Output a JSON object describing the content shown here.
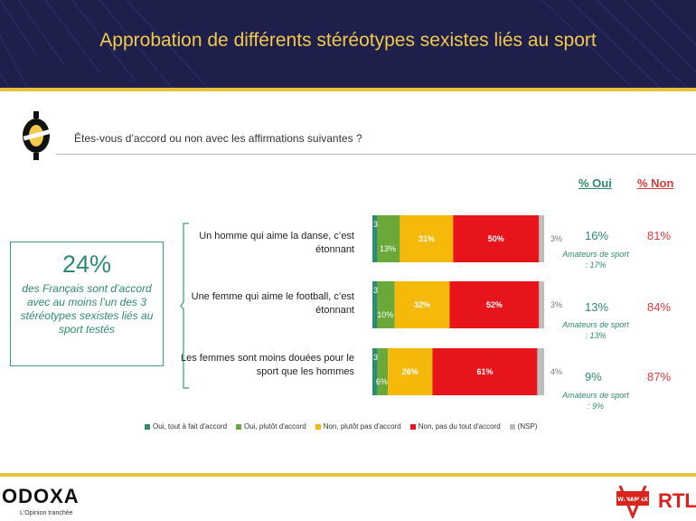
{
  "title": "Approbation de différents stéréotypes sexistes liés au sport",
  "question": "Êtes-vous d’accord ou non avec les affirmations suivantes ?",
  "columns": {
    "oui": "% Oui",
    "non": "% Non"
  },
  "callout": {
    "value": "24%",
    "text": "des Français sont d’accord avec au moins l’un des 3 stéréotypes sexistes liés au sport testés"
  },
  "rows": [
    {
      "statement": "Un homme qui aime la danse, c’est étonnant",
      "oui": "16%",
      "non": "81%",
      "amateurs": "Amateurs de sport : 17%"
    },
    {
      "statement": "Une femme qui aime le football, c’est étonnant",
      "oui": "13%",
      "non": "84%",
      "amateurs": "Amateurs de sport : 13%"
    },
    {
      "statement": "Les femmes sont moins douées pour le sport que les hommes",
      "oui": "9%",
      "non": "87%",
      "amateurs": "Amateurs de sport : 9%"
    }
  ],
  "chart_data": {
    "type": "bar",
    "stacked": true,
    "orientation": "horizontal",
    "categories": [
      "Un homme qui aime la danse, c’est étonnant",
      "Une femme qui aime le football, c’est étonnant",
      "Les femmes sont moins douées pour le sport que les hommes"
    ],
    "series": [
      {
        "name": "Oui, tout à fait d'accord",
        "color": "#2e8b6e",
        "values": [
          3,
          3,
          3
        ]
      },
      {
        "name": "Oui, plutôt d'accord",
        "color": "#6aa83a",
        "values": [
          13,
          10,
          6
        ]
      },
      {
        "name": "Non, plutôt pas d'accord",
        "color": "#f5b90c",
        "values": [
          31,
          32,
          26
        ]
      },
      {
        "name": "Non, pas du tout d'accord",
        "color": "#e8141c",
        "values": [
          50,
          52,
          61
        ]
      },
      {
        "name": "(NSP)",
        "color": "#bdbdbd",
        "values": [
          3,
          3,
          4
        ]
      }
    ],
    "legend_position": "bottom"
  },
  "footer": {
    "brand": "ODOXA",
    "tagline": "L'Opinion tranchée",
    "partner1": "WINAMAX",
    "partner2": "RTL"
  }
}
